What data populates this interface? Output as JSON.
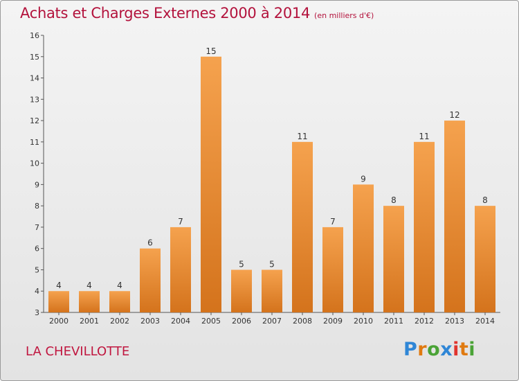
{
  "chart_data": {
    "type": "bar",
    "title": "Achats et Charges Externes 2000 à 2014",
    "subtitle": "(en milliers d'€)",
    "categories": [
      "2000",
      "2001",
      "2002",
      "2003",
      "2004",
      "2005",
      "2006",
      "2007",
      "2008",
      "2009",
      "2010",
      "2011",
      "2012",
      "2013",
      "2014"
    ],
    "values": [
      4,
      4,
      4,
      6,
      7,
      15,
      5,
      5,
      11,
      7,
      9,
      8,
      11,
      12,
      8
    ],
    "ylim": [
      3,
      16
    ],
    "yticks": [
      3,
      4,
      5,
      6,
      7,
      8,
      9,
      10,
      11,
      12,
      13,
      14,
      15,
      16
    ],
    "xlabel": "",
    "ylabel": "",
    "grid": false,
    "bar_color_top": "#f5a24e",
    "bar_color_bottom": "#d4731c"
  },
  "footer": {
    "place": "LA CHEVILLOTTE",
    "logo_letters": [
      "P",
      "r",
      "o",
      "x",
      "i",
      "t",
      "i"
    ],
    "logo_colors": [
      "#2f86d6",
      "#e07a10",
      "#4aa336",
      "#2f86d6",
      "#e0342e",
      "#e07a10",
      "#4aa336"
    ]
  }
}
